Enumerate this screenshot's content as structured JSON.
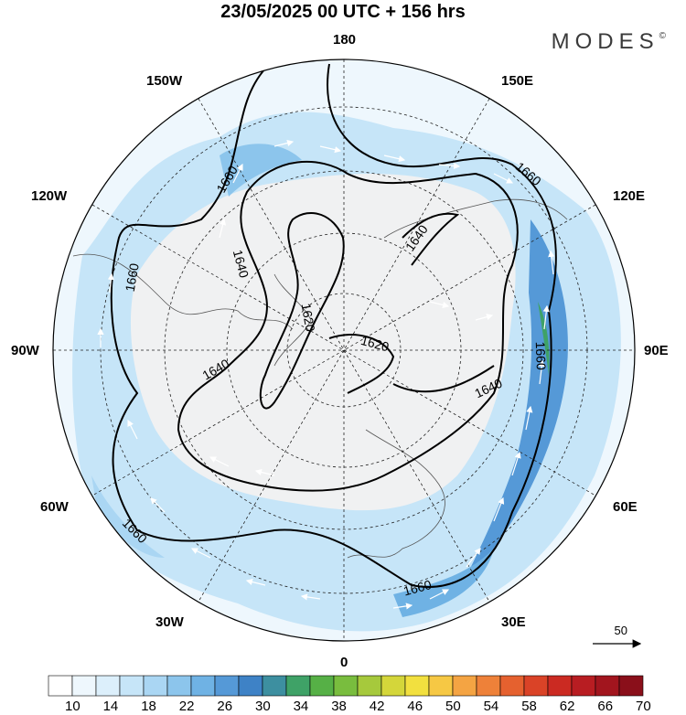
{
  "header": {
    "title": "23/05/2025  00 UTC  + 156 hrs",
    "brand": "MODES",
    "brand_mark": "©"
  },
  "map": {
    "longitude_labels": {
      "top": "180",
      "bottom": "0",
      "left": "90W",
      "right": "90E",
      "upper_left_1": "150W",
      "upper_left_2": "120W",
      "lower_left_1": "60W",
      "lower_left_2": "30W",
      "upper_right_1": "150E",
      "upper_right_2": "120E",
      "lower_right_1": "60E",
      "lower_right_2": "30E"
    },
    "contour_labels": [
      "1660",
      "1640",
      "1620",
      "1620",
      "1640",
      "1660",
      "1640",
      "1640",
      "1660",
      "1660",
      "1660"
    ],
    "reference_vector": "50"
  },
  "colorbar": {
    "ticks": [
      "10",
      "14",
      "18",
      "22",
      "26",
      "30",
      "34",
      "38",
      "42",
      "46",
      "50",
      "54",
      "58",
      "62",
      "66",
      "70"
    ],
    "colors": [
      "#ffffff",
      "#eef7fd",
      "#dceffb",
      "#c6e5f8",
      "#aad6f3",
      "#8cc5ec",
      "#6fb2e4",
      "#5599d7",
      "#3e82c6",
      "#3d8fa0",
      "#3fa267",
      "#56b046",
      "#79bd3e",
      "#a6c93c",
      "#d4d63a",
      "#f2e03f",
      "#f6c844",
      "#f4a443",
      "#ee8139",
      "#e5612f",
      "#da4327",
      "#cb2a22",
      "#b81d22",
      "#a2151e",
      "#8a0f1a"
    ]
  }
}
